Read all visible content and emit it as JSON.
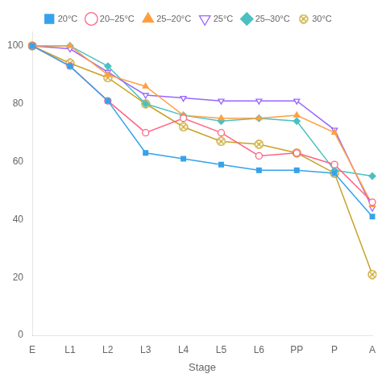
{
  "chart_data": {
    "type": "line",
    "xlabel": "Stage",
    "categories": [
      "E",
      "L1",
      "L2",
      "L3",
      "L4",
      "L5",
      "L6",
      "PP",
      "P",
      "A"
    ],
    "series": [
      {
        "name": "20°C",
        "values": [
          100,
          93,
          81,
          63,
          61,
          59,
          57,
          57,
          56,
          41
        ],
        "color": "#36a2eb",
        "marker": "square"
      },
      {
        "name": "20–25°C",
        "values": [
          100,
          93,
          81,
          70,
          75,
          70,
          62,
          63,
          59,
          46
        ],
        "color": "#ff6384",
        "marker": "open_circle"
      },
      {
        "name": "25–20°C",
        "values": [
          100,
          100,
          90,
          86,
          76,
          75,
          75,
          76,
          70,
          45
        ],
        "color": "#ff9f40",
        "marker": "triangle"
      },
      {
        "name": "25°C",
        "values": [
          100,
          99,
          91,
          83,
          82,
          81,
          81,
          81,
          71,
          44
        ],
        "color": "#9966ff",
        "marker": "open_triangle_down"
      },
      {
        "name": "25–30°C",
        "values": [
          100,
          100,
          93,
          80,
          76,
          74,
          75,
          74,
          57,
          55
        ],
        "color": "#4bc0c0",
        "marker": "diamond"
      },
      {
        "name": "30°C",
        "values": [
          100,
          94,
          89,
          80,
          72,
          67,
          66,
          63,
          56,
          21
        ],
        "color": "#c9a227",
        "marker": "circle_x"
      }
    ],
    "ylim": [
      0,
      105
    ],
    "yticks": [
      0,
      20,
      40,
      60,
      80,
      100
    ],
    "grid": false,
    "legend": "top"
  }
}
